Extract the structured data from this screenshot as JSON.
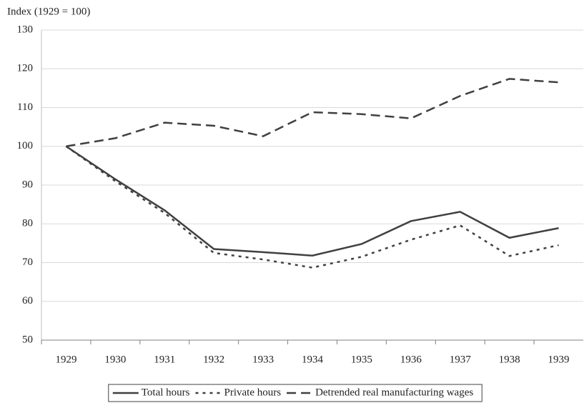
{
  "chart_data": {
    "type": "line",
    "y_label": "Index (1929 = 100)",
    "categories": [
      "1929",
      "1930",
      "1931",
      "1932",
      "1933",
      "1934",
      "1935",
      "1936",
      "1937",
      "1938",
      "1939"
    ],
    "series": [
      {
        "name": "Total hours",
        "color": "#404040",
        "dash": "solid",
        "values": [
          100,
          91.5,
          83.5,
          73.5,
          72.7,
          71.8,
          74.8,
          80.7,
          83.1,
          76.4,
          78.9
        ]
      },
      {
        "name": "Private hours",
        "color": "#404040",
        "dash": "dotted",
        "values": [
          100,
          91,
          82.8,
          72.5,
          70.8,
          68.7,
          71.5,
          75.9,
          79.6,
          71.7,
          74.5
        ]
      },
      {
        "name": "Detrended real manufacturing wages",
        "color": "#404040",
        "dash": "dashed",
        "values": [
          100,
          102.1,
          106.1,
          105.3,
          102.6,
          108.8,
          108.3,
          107.2,
          113,
          117.4,
          116.5
        ]
      }
    ],
    "ylim": [
      50,
      130
    ],
    "yticks": [
      50,
      60,
      70,
      80,
      90,
      100,
      110,
      120,
      130
    ],
    "grid": true,
    "legend": "bottom"
  }
}
